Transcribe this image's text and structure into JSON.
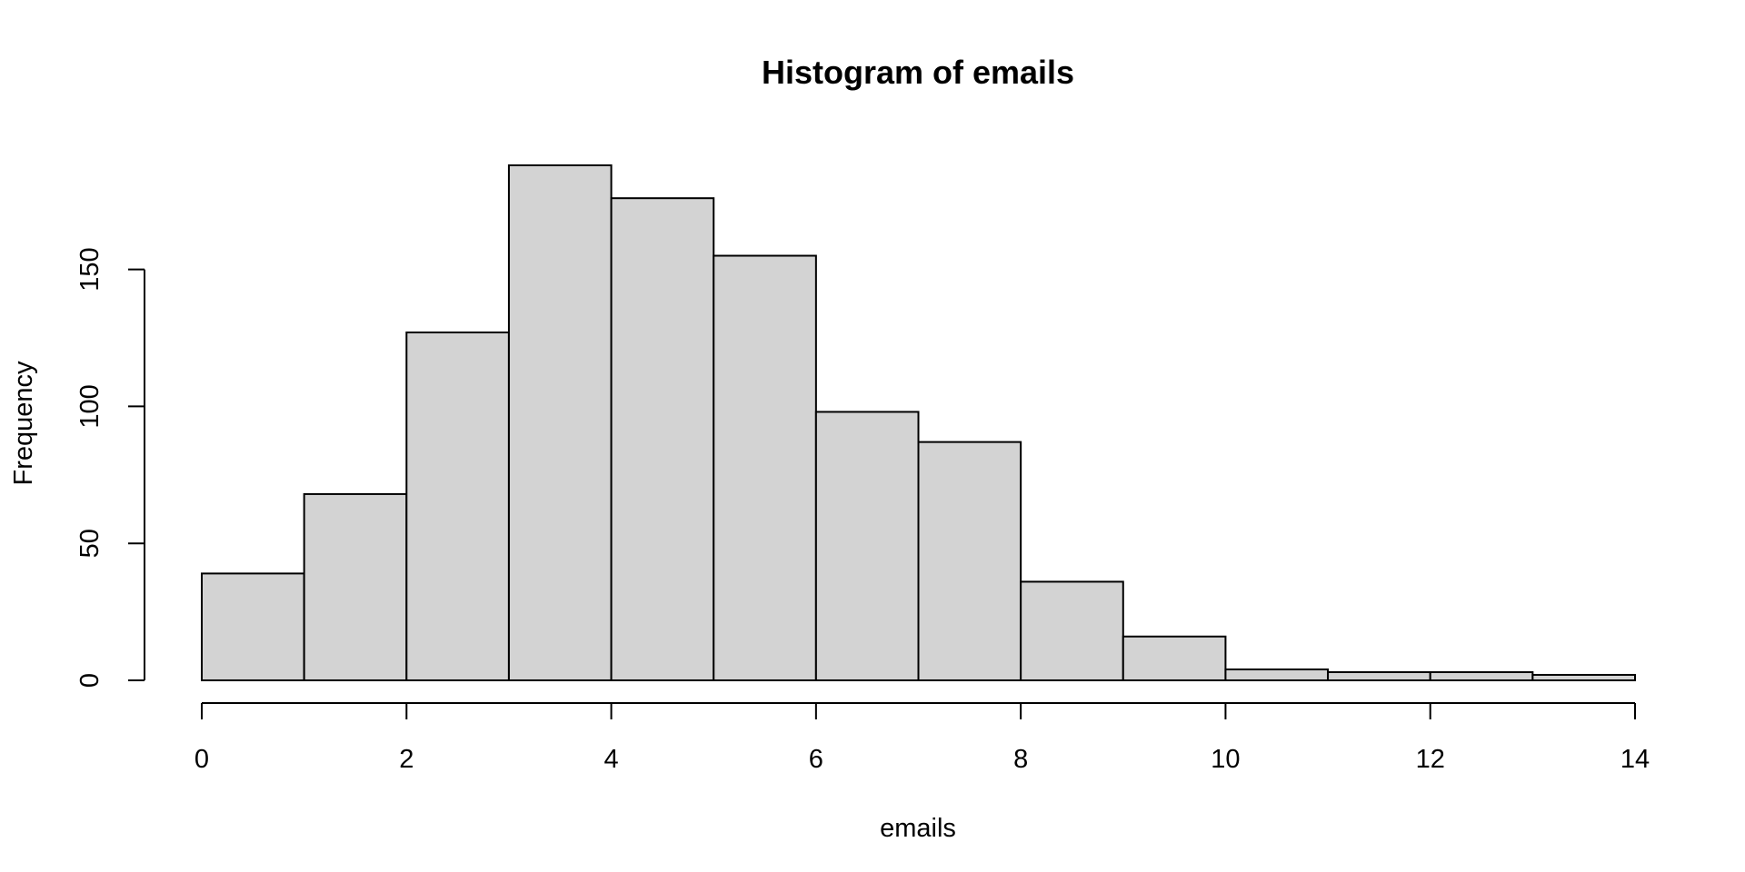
{
  "chart_data": {
    "type": "bar",
    "title": "Histogram of emails",
    "xlabel": "emails",
    "ylabel": "Frequency",
    "bins": [
      {
        "start": 0,
        "end": 1,
        "count": 39
      },
      {
        "start": 1,
        "end": 2,
        "count": 68
      },
      {
        "start": 2,
        "end": 3,
        "count": 127
      },
      {
        "start": 3,
        "end": 4,
        "count": 188
      },
      {
        "start": 4,
        "end": 5,
        "count": 176
      },
      {
        "start": 5,
        "end": 6,
        "count": 155
      },
      {
        "start": 6,
        "end": 7,
        "count": 98
      },
      {
        "start": 7,
        "end": 8,
        "count": 87
      },
      {
        "start": 8,
        "end": 9,
        "count": 36
      },
      {
        "start": 9,
        "end": 10,
        "count": 16
      },
      {
        "start": 10,
        "end": 11,
        "count": 4
      },
      {
        "start": 11,
        "end": 12,
        "count": 3
      },
      {
        "start": 12,
        "end": 13,
        "count": 3
      },
      {
        "start": 13,
        "end": 14,
        "count": 2
      }
    ],
    "xlim": [
      0,
      14
    ],
    "ylim": [
      0,
      188
    ],
    "x_ticks": [
      0,
      2,
      4,
      6,
      8,
      10,
      12,
      14
    ],
    "y_ticks": [
      0,
      50,
      100,
      150
    ],
    "grid": false,
    "legend": "none",
    "colors": {
      "bar_fill": "#d3d3d3",
      "bar_stroke": "#000000"
    }
  }
}
